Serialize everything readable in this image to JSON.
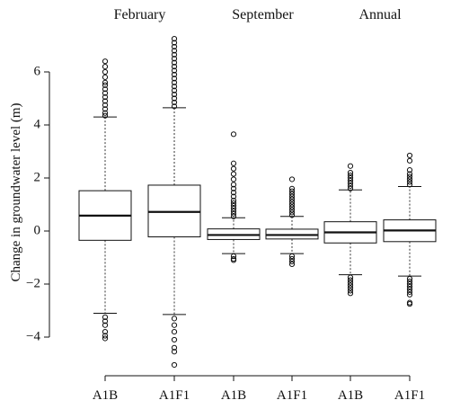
{
  "chart_data": {
    "type": "boxplot",
    "ylabel": "Change in groundwater level (m)",
    "ylim": [
      -5.4,
      7.6
    ],
    "y_ticks": [
      6,
      4,
      2,
      0,
      -2,
      -4
    ],
    "y_tick_labels": [
      "6",
      "4",
      "2",
      "0",
      "−2",
      "−4"
    ],
    "x_groups": [
      {
        "label": "February",
        "spans": [
          0,
          1
        ]
      },
      {
        "label": "September",
        "spans": [
          2,
          3
        ]
      },
      {
        "label": "Annual",
        "spans": [
          4,
          5
        ]
      }
    ],
    "categories": [
      "A1B",
      "A1F1",
      "A1B",
      "A1F1",
      "A1B",
      "A1F1"
    ],
    "boxes": [
      {
        "category": "A1B",
        "group": "February",
        "whisker_low": -3.1,
        "q1": -0.35,
        "median": 0.58,
        "q3": 1.52,
        "whisker_high": 4.3,
        "outliers_high": [
          4.35,
          4.45,
          4.6,
          4.75,
          4.9,
          5.05,
          5.2,
          5.35,
          5.5,
          5.6,
          5.8,
          6.0,
          6.2,
          6.4
        ],
        "outliers_low": [
          -3.25,
          -3.4,
          -3.55,
          -3.8,
          -3.95,
          -4.05
        ]
      },
      {
        "category": "A1F1",
        "group": "February",
        "whisker_low": -3.15,
        "q1": -0.22,
        "median": 0.72,
        "q3": 1.73,
        "whisker_high": 4.65,
        "outliers_high": [
          4.7,
          4.85,
          5.0,
          5.15,
          5.3,
          5.45,
          5.6,
          5.75,
          5.9,
          6.05,
          6.2,
          6.35,
          6.5,
          6.65,
          6.8,
          6.95,
          7.1,
          7.25
        ],
        "outliers_low": [
          -3.3,
          -3.55,
          -3.8,
          -4.1,
          -4.4,
          -4.55,
          -5.05
        ]
      },
      {
        "category": "A1B",
        "group": "September",
        "whisker_low": -0.85,
        "q1": -0.32,
        "median": -0.15,
        "q3": 0.08,
        "whisker_high": 0.5,
        "outliers_high": [
          0.55,
          0.65,
          0.75,
          0.85,
          0.95,
          1.05,
          1.15,
          1.3,
          1.45,
          1.6,
          1.75,
          1.95,
          2.15,
          2.35,
          2.55,
          3.65
        ],
        "outliers_low": [
          -0.95,
          -1.05,
          -1.1
        ]
      },
      {
        "category": "A1F1",
        "group": "September",
        "whisker_low": -0.85,
        "q1": -0.3,
        "median": -0.15,
        "q3": 0.07,
        "whisker_high": 0.55,
        "outliers_high": [
          0.6,
          0.7,
          0.8,
          0.9,
          1.0,
          1.1,
          1.2,
          1.3,
          1.4,
          1.5,
          1.6,
          1.95
        ],
        "outliers_low": [
          -0.95,
          -1.05,
          -1.15,
          -1.25
        ]
      },
      {
        "category": "A1B",
        "group": "Annual",
        "whisker_low": -1.65,
        "q1": -0.45,
        "median": -0.05,
        "q3": 0.35,
        "whisker_high": 1.55,
        "outliers_high": [
          1.6,
          1.7,
          1.8,
          1.9,
          2.0,
          2.1,
          2.2,
          2.45
        ],
        "outliers_low": [
          -1.75,
          -1.85,
          -1.95,
          -2.05,
          -2.15,
          -2.25,
          -2.35
        ]
      },
      {
        "category": "A1F1",
        "group": "Annual",
        "whisker_low": -1.7,
        "q1": -0.4,
        "median": 0.02,
        "q3": 0.42,
        "whisker_high": 1.68,
        "outliers_high": [
          1.75,
          1.85,
          1.95,
          2.05,
          2.15,
          2.3,
          2.65,
          2.85
        ],
        "outliers_low": [
          -1.8,
          -1.9,
          -2.0,
          -2.1,
          -2.2,
          -2.3,
          -2.4,
          -2.7,
          -2.75
        ]
      }
    ]
  }
}
